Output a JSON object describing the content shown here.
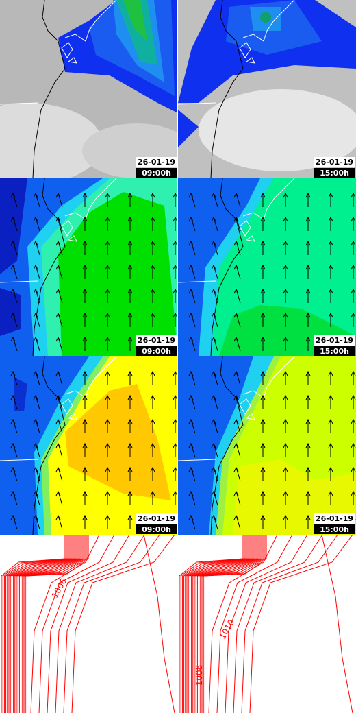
{
  "panels": [
    {
      "date": "26-01-19",
      "time": "09:00h"
    },
    {
      "date": "26-01-19",
      "time": "15:00h"
    },
    {
      "date": "26-01-19",
      "time": "09:00h"
    },
    {
      "date": "26-01-19",
      "time": "15:00h"
    },
    {
      "date": "26-01-19",
      "time": "09:00h"
    },
    {
      "date": "26-01-19",
      "time": "15:00h"
    }
  ],
  "pressure_panels": [
    {
      "labels": [
        "1006"
      ]
    },
    {
      "labels": [
        "1010",
        "1008"
      ]
    }
  ]
}
